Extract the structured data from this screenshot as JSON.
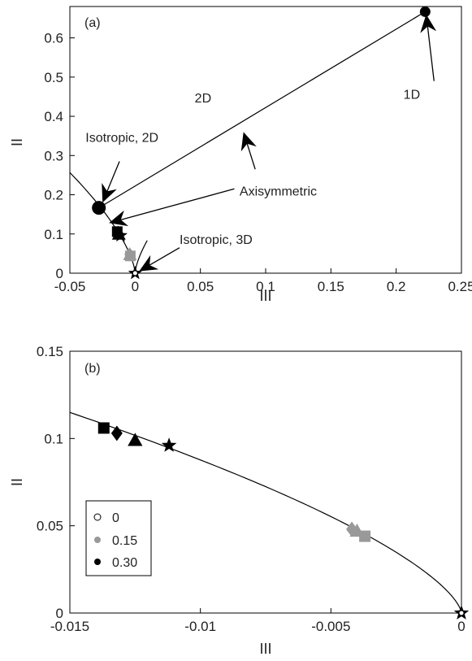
{
  "chart_data": [
    {
      "panel_label": "(a)",
      "type": "scatter",
      "xlabel": "III",
      "ylabel": "II",
      "xlim": [
        -0.05,
        0.25
      ],
      "ylim": [
        0,
        0.68
      ],
      "xticks": [
        -0.05,
        0,
        0.05,
        0.1,
        0.15,
        0.2,
        0.25
      ],
      "xtick_labels": [
        "-0.05",
        "0",
        "0.05",
        "0.1",
        "0.15",
        "0.2",
        "0.25"
      ],
      "yticks": [
        0,
        0.1,
        0.2,
        0.3,
        0.4,
        0.5,
        0.6
      ],
      "ytick_labels": [
        "0",
        "0.1",
        "0.2",
        "0.3",
        "0.4",
        "0.5",
        "0.6"
      ],
      "boundary_points": {
        "isotropic_3d": [
          0,
          0
        ],
        "isotropic_2d": [
          -0.0278,
          0.1667
        ],
        "one_d": [
          0.2222,
          0.6667
        ]
      },
      "annotations": [
        {
          "id": "one_d",
          "text": "1D"
        },
        {
          "id": "two_d",
          "text": "2D"
        },
        {
          "id": "iso2d",
          "text": "Isotropic, 2D"
        },
        {
          "id": "axisym",
          "text": "Axisymmetric"
        },
        {
          "id": "iso3d",
          "text": "Isotropic, 3D"
        }
      ],
      "series": [
        {
          "color": "#000000",
          "points": [
            {
              "x": -0.0137,
              "y": 0.106,
              "marker": "square"
            },
            {
              "x": -0.0132,
              "y": 0.103,
              "marker": "diamond"
            },
            {
              "x": -0.0125,
              "y": 0.099,
              "marker": "triangle"
            },
            {
              "x": -0.0112,
              "y": 0.096,
              "marker": "star"
            },
            {
              "x": 0,
              "y": 0,
              "marker": "star"
            }
          ]
        },
        {
          "color": "#999999",
          "points": [
            {
              "x": -0.0042,
              "y": 0.048,
              "marker": "diamond"
            },
            {
              "x": -0.004,
              "y": 0.047,
              "marker": "triangle"
            },
            {
              "x": -0.0037,
              "y": 0.044,
              "marker": "square"
            }
          ]
        }
      ]
    },
    {
      "panel_label": "(b)",
      "type": "scatter",
      "xlabel": "III",
      "ylabel": "II",
      "xlim": [
        -0.015,
        0
      ],
      "ylim": [
        0,
        0.15
      ],
      "xticks": [
        -0.015,
        -0.01,
        -0.005,
        0
      ],
      "xtick_labels": [
        "-0.015",
        "-0.01",
        "-0.005",
        "0"
      ],
      "yticks": [
        0,
        0.05,
        0.1,
        0.15
      ],
      "ytick_labels": [
        "0",
        "0.05",
        "0.1",
        "0.15"
      ],
      "legend": {
        "placement": "lower-left",
        "entries": [
          {
            "label": "0",
            "style": "open",
            "color": "#000000"
          },
          {
            "label": "0.15",
            "style": "filled",
            "color": "#999999"
          },
          {
            "label": "0.30",
            "style": "filled",
            "color": "#000000"
          }
        ]
      },
      "series": [
        {
          "name": "0.30",
          "color": "#000000",
          "points": [
            {
              "x": -0.0137,
              "y": 0.106,
              "marker": "square"
            },
            {
              "x": -0.0132,
              "y": 0.103,
              "marker": "diamond"
            },
            {
              "x": -0.0125,
              "y": 0.099,
              "marker": "triangle"
            },
            {
              "x": -0.0112,
              "y": 0.096,
              "marker": "star"
            }
          ]
        },
        {
          "name": "0.15",
          "color": "#999999",
          "points": [
            {
              "x": -0.0042,
              "y": 0.048,
              "marker": "diamond"
            },
            {
              "x": -0.004,
              "y": 0.047,
              "marker": "triangle"
            },
            {
              "x": -0.0037,
              "y": 0.044,
              "marker": "square"
            }
          ]
        },
        {
          "name": "0",
          "color": "#000000",
          "points": [
            {
              "x": 0,
              "y": 0,
              "marker": "star"
            },
            {
              "x": 0,
              "y": 0,
              "marker": "circle"
            }
          ]
        }
      ]
    }
  ]
}
